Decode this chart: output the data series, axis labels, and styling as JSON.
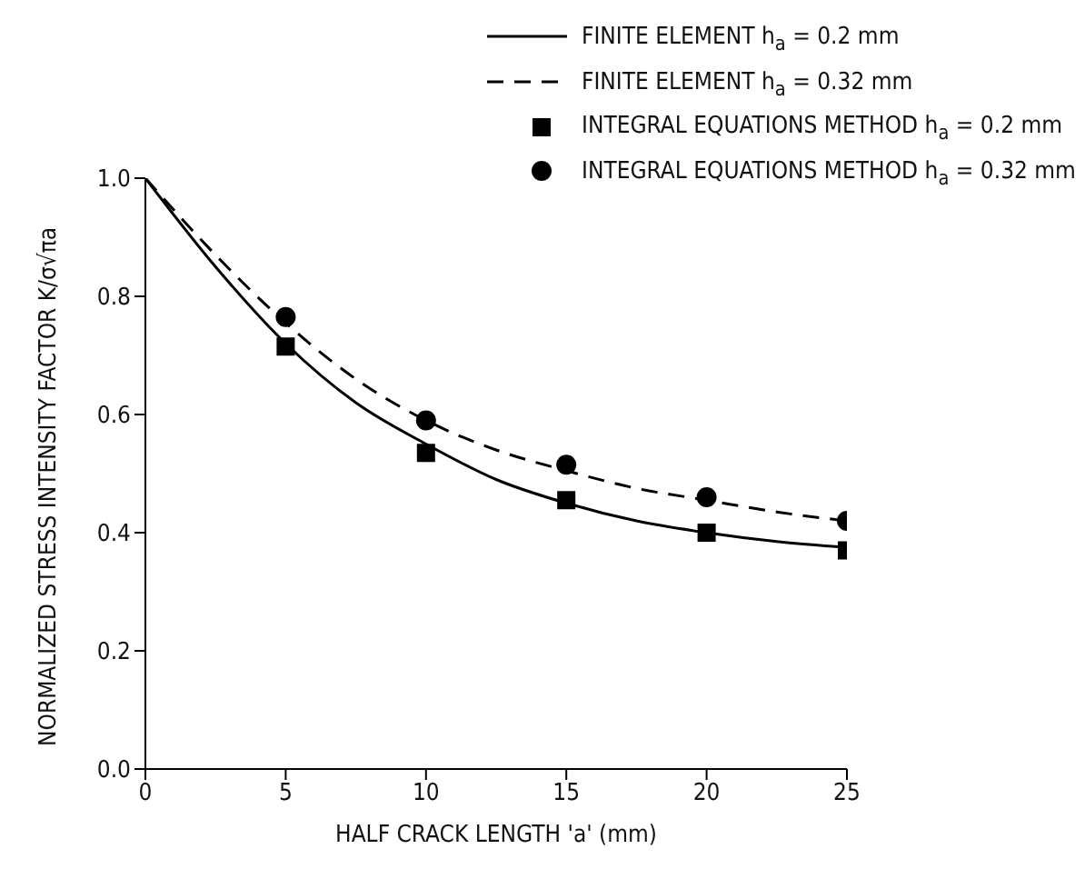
{
  "chart_data": {
    "type": "line",
    "xlabel": "HALF CRACK LENGTH 'a' (mm)",
    "ylabel": "NORMALIZED STRESS INTENSITY FACTOR K/σ√πa",
    "xlim": [
      0,
      25
    ],
    "xticks": [
      0,
      5,
      10,
      15,
      20,
      25
    ],
    "ylim": [
      0,
      1
    ],
    "yticks": [
      {
        "value": 0,
        "label": "0.0"
      },
      0.2,
      0.4,
      0.6,
      0.8,
      {
        "value": 1,
        "label": "1.0"
      }
    ],
    "grid": false,
    "legend": "top right",
    "series": [
      {
        "name": "FINITE ELEMENT h$_{a}$ = 0.2 mm",
        "color": "#000000",
        "line_style": "solid",
        "marker": "none",
        "x": [
          0,
          2.5,
          5,
          7.5,
          10,
          12.5,
          15,
          17.5,
          20,
          22.5,
          25
        ],
        "values": [
          1.0,
          0.85,
          0.72,
          0.62,
          0.55,
          0.49,
          0.45,
          0.42,
          0.4,
          0.385,
          0.375
        ]
      },
      {
        "name": "FINITE ELEMENT h$_{a}$ = 0.32 mm",
        "color": "#000000",
        "line_style": "dashed",
        "marker": "none",
        "x": [
          0,
          2.5,
          5,
          7.5,
          10,
          12.5,
          15,
          17.5,
          20,
          22.5,
          25
        ],
        "values": [
          1.0,
          0.87,
          0.755,
          0.66,
          0.59,
          0.54,
          0.505,
          0.475,
          0.455,
          0.435,
          0.42
        ]
      },
      {
        "name": "INTEGRAL EQUATIONS METHOD h$_{a}$ = 0.2 mm",
        "type": "scatter",
        "color": "#000000",
        "marker": "square",
        "x": [
          5,
          10,
          15,
          20,
          25
        ],
        "values": [
          0.715,
          0.535,
          0.455,
          0.4,
          0.37
        ]
      },
      {
        "name": "INTEGRAL EQUATIONS METHOD h$_{a}$ = 0.32 mm",
        "type": "scatter",
        "color": "#000000",
        "marker": "circle",
        "x": [
          5,
          10,
          15,
          20,
          25
        ],
        "values": [
          0.765,
          0.59,
          0.515,
          0.46,
          0.42
        ]
      }
    ]
  }
}
